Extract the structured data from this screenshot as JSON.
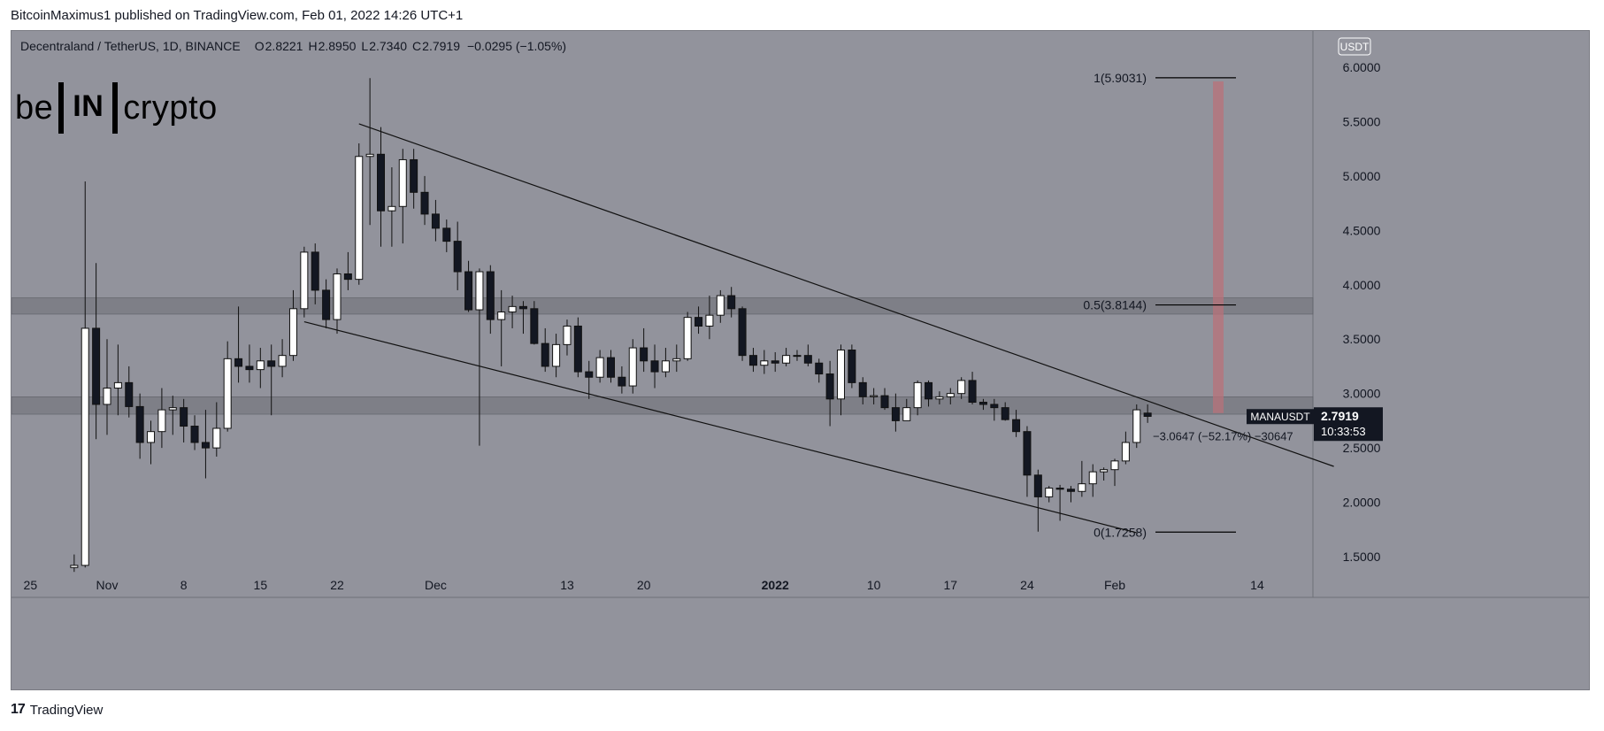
{
  "header": {
    "caption": "BitcoinMaximus1 published on TradingView.com, Feb 01, 2022 14:26 UTC+1"
  },
  "legend": {
    "symbol": "Decentraland / TetherUS, 1D, BINANCE",
    "open_label": "O",
    "open": "2.8221",
    "high_label": "H",
    "high": "2.8950",
    "low_label": "L",
    "low": "2.7340",
    "close_label": "C",
    "close": "2.7919",
    "change": "−0.0295 (−1.05%)"
  },
  "logo": {
    "left": "be",
    "mid": "IN",
    "right": "crypto"
  },
  "footer": {
    "brand": "TradingView",
    "brand_icon": "tradingview-logo-icon"
  },
  "chart_data": {
    "type": "candlestick",
    "currency_button": "USDT",
    "price_axis": {
      "ylim": [
        1.36,
        6.3
      ],
      "ticks": [
        "1.5000",
        "2.0000",
        "2.5000",
        "3.0000",
        "3.5000",
        "4.0000",
        "4.5000",
        "5.0000",
        "5.5000",
        "6.0000"
      ]
    },
    "time_axis": {
      "ticks": [
        {
          "label": "25",
          "day": 25,
          "bold": false
        },
        {
          "label": "Nov",
          "day": 32,
          "bold": false
        },
        {
          "label": "8",
          "day": 39,
          "bold": false
        },
        {
          "label": "15",
          "day": 46,
          "bold": false
        },
        {
          "label": "22",
          "day": 53,
          "bold": false
        },
        {
          "label": "Dec",
          "day": 62,
          "bold": false
        },
        {
          "label": "13",
          "day": 74,
          "bold": false
        },
        {
          "label": "20",
          "day": 81,
          "bold": false
        },
        {
          "label": "2022",
          "day": 93,
          "bold": true
        },
        {
          "label": "10",
          "day": 102,
          "bold": false
        },
        {
          "label": "17",
          "day": 109,
          "bold": false
        },
        {
          "label": "24",
          "day": 116,
          "bold": false
        },
        {
          "label": "Feb",
          "day": 124,
          "bold": false
        },
        {
          "label": "14",
          "day": 137,
          "bold": false
        }
      ]
    },
    "day_index_note": "day numbers count from Oct 1, 2021 = 1",
    "candles": [
      [
        29,
        1.4,
        1.52,
        1.36,
        1.42
      ],
      [
        30,
        1.42,
        4.95,
        1.4,
        3.6
      ],
      [
        31,
        3.6,
        4.2,
        2.58,
        2.9
      ],
      [
        32,
        2.9,
        3.5,
        2.62,
        3.05
      ],
      [
        33,
        3.05,
        3.45,
        2.8,
        3.1
      ],
      [
        34,
        3.1,
        3.25,
        2.78,
        2.88
      ],
      [
        35,
        2.88,
        3.0,
        2.4,
        2.55
      ],
      [
        36,
        2.55,
        2.75,
        2.35,
        2.65
      ],
      [
        37,
        2.65,
        3.05,
        2.5,
        2.85
      ],
      [
        38,
        2.85,
        2.98,
        2.62,
        2.87
      ],
      [
        39,
        2.87,
        2.95,
        2.55,
        2.7
      ],
      [
        40,
        2.7,
        2.8,
        2.48,
        2.55
      ],
      [
        41,
        2.55,
        2.85,
        2.22,
        2.5
      ],
      [
        42,
        2.5,
        2.92,
        2.42,
        2.68
      ],
      [
        43,
        2.68,
        3.48,
        2.65,
        3.32
      ],
      [
        44,
        3.32,
        3.8,
        3.1,
        3.25
      ],
      [
        45,
        3.25,
        3.45,
        3.1,
        3.22
      ],
      [
        46,
        3.22,
        3.42,
        3.05,
        3.3
      ],
      [
        47,
        3.3,
        3.45,
        2.8,
        3.25
      ],
      [
        48,
        3.25,
        3.5,
        3.15,
        3.35
      ],
      [
        49,
        3.35,
        3.95,
        3.3,
        3.78
      ],
      [
        50,
        3.78,
        4.35,
        3.7,
        4.3
      ],
      [
        51,
        4.3,
        4.38,
        3.82,
        3.95
      ],
      [
        52,
        3.95,
        4.05,
        3.6,
        3.68
      ],
      [
        53,
        3.68,
        4.15,
        3.55,
        4.1
      ],
      [
        54,
        4.1,
        4.3,
        3.95,
        4.05
      ],
      [
        55,
        4.05,
        5.3,
        4.0,
        5.18
      ],
      [
        56,
        5.18,
        5.9,
        4.55,
        5.2
      ],
      [
        57,
        5.2,
        5.45,
        4.35,
        4.68
      ],
      [
        58,
        4.68,
        5.08,
        4.35,
        4.72
      ],
      [
        59,
        4.72,
        5.25,
        4.38,
        5.15
      ],
      [
        60,
        5.15,
        5.25,
        4.7,
        4.85
      ],
      [
        61,
        4.85,
        5.0,
        4.55,
        4.65
      ],
      [
        62,
        4.65,
        4.78,
        4.4,
        4.52
      ],
      [
        63,
        4.52,
        4.6,
        4.3,
        4.4
      ],
      [
        64,
        4.4,
        4.58,
        3.95,
        4.12
      ],
      [
        65,
        4.12,
        4.22,
        3.75,
        3.77
      ],
      [
        66,
        3.77,
        4.15,
        2.52,
        4.12
      ],
      [
        67,
        4.12,
        4.18,
        3.55,
        3.68
      ],
      [
        68,
        3.68,
        3.95,
        3.25,
        3.75
      ],
      [
        69,
        3.75,
        3.9,
        3.6,
        3.8
      ],
      [
        70,
        3.8,
        3.85,
        3.55,
        3.78
      ],
      [
        71,
        3.78,
        3.85,
        3.45,
        3.46
      ],
      [
        72,
        3.46,
        3.6,
        3.2,
        3.25
      ],
      [
        73,
        3.25,
        3.55,
        3.15,
        3.45
      ],
      [
        74,
        3.45,
        3.68,
        3.35,
        3.62
      ],
      [
        75,
        3.62,
        3.7,
        3.15,
        3.2
      ],
      [
        76,
        3.2,
        3.3,
        2.95,
        3.15
      ],
      [
        77,
        3.15,
        3.4,
        3.1,
        3.33
      ],
      [
        78,
        3.33,
        3.4,
        3.1,
        3.15
      ],
      [
        79,
        3.15,
        3.25,
        3.0,
        3.07
      ],
      [
        80,
        3.07,
        3.5,
        3.0,
        3.42
      ],
      [
        81,
        3.42,
        3.6,
        3.2,
        3.3
      ],
      [
        82,
        3.3,
        3.45,
        3.05,
        3.2
      ],
      [
        83,
        3.2,
        3.42,
        3.15,
        3.3
      ],
      [
        84,
        3.3,
        3.45,
        3.2,
        3.32
      ],
      [
        85,
        3.32,
        3.75,
        3.3,
        3.7
      ],
      [
        86,
        3.7,
        3.8,
        3.55,
        3.62
      ],
      [
        87,
        3.62,
        3.9,
        3.5,
        3.72
      ],
      [
        88,
        3.72,
        3.95,
        3.65,
        3.9
      ],
      [
        89,
        3.9,
        3.98,
        3.7,
        3.78
      ],
      [
        90,
        3.78,
        3.8,
        3.3,
        3.35
      ],
      [
        91,
        3.35,
        3.42,
        3.2,
        3.26
      ],
      [
        92,
        3.26,
        3.4,
        3.18,
        3.3
      ],
      [
        93,
        3.3,
        3.38,
        3.2,
        3.28
      ],
      [
        94,
        3.28,
        3.42,
        3.25,
        3.35
      ],
      [
        95,
        3.35,
        3.4,
        3.3,
        3.35
      ],
      [
        96,
        3.35,
        3.45,
        3.25,
        3.28
      ],
      [
        97,
        3.28,
        3.32,
        3.1,
        3.18
      ],
      [
        98,
        3.18,
        3.3,
        2.7,
        2.95
      ],
      [
        99,
        2.95,
        3.45,
        2.8,
        3.4
      ],
      [
        100,
        3.4,
        3.45,
        3.05,
        3.1
      ],
      [
        101,
        3.1,
        3.15,
        2.9,
        2.97
      ],
      [
        102,
        2.97,
        3.05,
        2.9,
        2.98
      ],
      [
        103,
        2.98,
        3.05,
        2.85,
        2.87
      ],
      [
        104,
        2.87,
        3.0,
        2.65,
        2.75
      ],
      [
        105,
        2.75,
        2.95,
        2.75,
        2.87
      ],
      [
        106,
        2.87,
        3.12,
        2.8,
        3.1
      ],
      [
        107,
        3.1,
        3.12,
        2.88,
        2.95
      ],
      [
        108,
        2.95,
        3.02,
        2.9,
        2.97
      ],
      [
        109,
        2.97,
        3.05,
        2.9,
        3.0
      ],
      [
        110,
        3.0,
        3.15,
        2.95,
        3.12
      ],
      [
        111,
        3.12,
        3.2,
        2.9,
        2.92
      ],
      [
        112,
        2.92,
        2.95,
        2.85,
        2.9
      ],
      [
        113,
        2.9,
        2.95,
        2.75,
        2.87
      ],
      [
        114,
        2.87,
        2.92,
        2.75,
        2.76
      ],
      [
        115,
        2.76,
        2.85,
        2.6,
        2.65
      ],
      [
        116,
        2.65,
        2.7,
        2.05,
        2.25
      ],
      [
        117,
        2.25,
        2.3,
        1.73,
        2.05
      ],
      [
        118,
        2.05,
        2.15,
        2.0,
        2.13
      ],
      [
        119,
        2.13,
        2.16,
        1.83,
        2.12
      ],
      [
        120,
        2.12,
        2.15,
        2.0,
        2.1
      ],
      [
        121,
        2.1,
        2.38,
        2.05,
        2.17
      ],
      [
        122,
        2.17,
        2.35,
        2.05,
        2.28
      ],
      [
        123,
        2.28,
        2.32,
        2.2,
        2.3
      ],
      [
        124,
        2.3,
        2.4,
        2.15,
        2.38
      ],
      [
        125,
        2.38,
        2.65,
        2.35,
        2.55
      ],
      [
        126,
        2.55,
        2.9,
        2.5,
        2.85
      ],
      [
        127,
        2.82,
        2.9,
        2.73,
        2.79
      ]
    ],
    "resistance_zones": [
      {
        "from": 3.73,
        "to": 3.88
      },
      {
        "from": 2.81,
        "to": 2.97
      }
    ],
    "trendlines": [
      {
        "name": "descending-resistance",
        "points": [
          [
            55,
            5.48
          ],
          [
            144,
            2.33
          ]
        ]
      },
      {
        "name": "descending-support",
        "points": [
          [
            50,
            3.66
          ],
          [
            126,
            1.72
          ]
        ]
      }
    ],
    "fib_levels": [
      {
        "label": "1(5.9031)",
        "value": 5.9031
      },
      {
        "label": "0.5(3.8144)",
        "value": 3.8144
      },
      {
        "label": "0(1.7258)",
        "value": 1.7258
      }
    ],
    "measure": {
      "from_value": 5.87,
      "to_value": 2.82,
      "label": "−3.0647 (−52.17%) −30647"
    },
    "current_price": {
      "ticker": "MANAUSDT",
      "price": "2.7919",
      "countdown": "10:33:53",
      "value": 2.7919
    }
  }
}
